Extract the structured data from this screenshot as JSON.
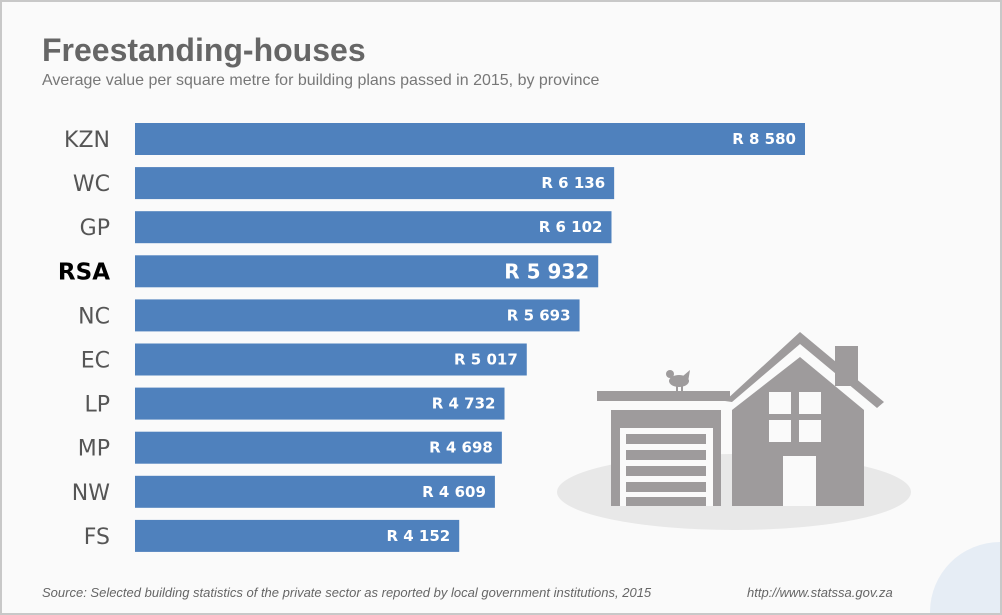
{
  "chart_data": {
    "type": "bar",
    "orientation": "horizontal",
    "title": "Freestanding-houses",
    "subtitle": "Average value per square metre for building plans passed in 2015, by province",
    "categories": [
      "KZN",
      "WC",
      "GP",
      "RSA",
      "NC",
      "EC",
      "LP",
      "MP",
      "NW",
      "FS"
    ],
    "values": [
      8580,
      6136,
      6102,
      5932,
      5693,
      5017,
      4732,
      4698,
      4609,
      4152
    ],
    "data_labels": [
      "R 8 580",
      "R 6 136",
      "R 6 102",
      "R 5 932",
      "R 5 693",
      "R 5 017",
      "R 4 732",
      "R 4 698",
      "R 4 609",
      "R 4 152"
    ],
    "highlight": "RSA",
    "xlim": [
      0,
      8580
    ],
    "grid": false,
    "bar_color": "#4f81bd",
    "label_color": "#ffffff"
  },
  "footer": {
    "source": "Source: Selected building statistics of the private sector as reported by local government institutions, 2015",
    "url": "http://www.statssa.gov.za"
  },
  "illustration": {
    "icon": "house-with-garage-icon",
    "color": "#9e9b9c"
  }
}
